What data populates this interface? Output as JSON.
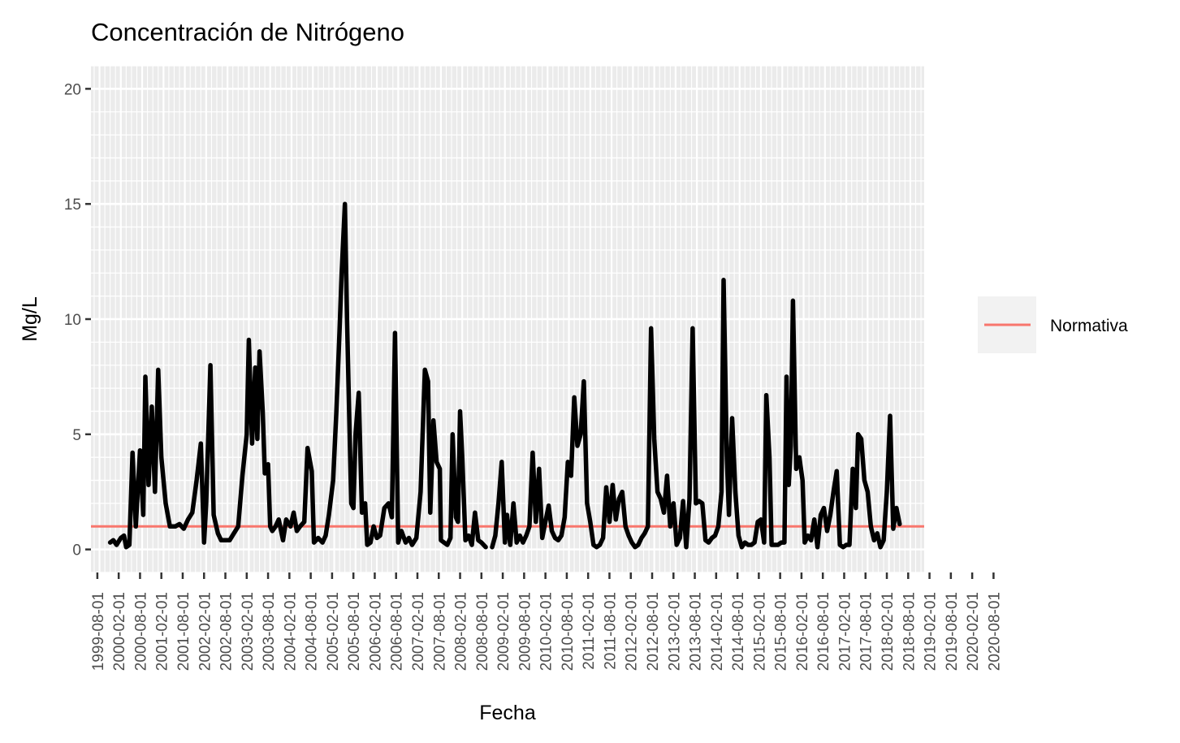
{
  "chart_data": {
    "type": "line",
    "title": "Concentración de Nitrógeno",
    "xlabel": "Fecha",
    "ylabel": "Mg/L",
    "ylim": [
      -1,
      21
    ],
    "yticks": [
      0,
      5,
      10,
      15,
      20
    ],
    "xticks": [
      "1999-08-01",
      "2000-02-01",
      "2000-08-01",
      "2001-02-01",
      "2001-08-01",
      "2002-02-01",
      "2002-08-01",
      "2003-02-01",
      "2003-08-01",
      "2004-02-01",
      "2004-08-01",
      "2005-02-01",
      "2005-08-01",
      "2006-02-01",
      "2006-08-01",
      "2007-02-01",
      "2007-08-01",
      "2008-02-01",
      "2008-08-01",
      "2009-02-01",
      "2009-08-01",
      "2010-02-01",
      "2010-08-01",
      "2011-02-01",
      "2011-08-01",
      "2012-02-01",
      "2012-08-01",
      "2013-02-01",
      "2013-08-01",
      "2014-02-01",
      "2014-08-01",
      "2015-02-01",
      "2015-08-01",
      "2016-02-01",
      "2016-08-01",
      "2017-02-01",
      "2017-08-01",
      "2018-02-01",
      "2018-08-01",
      "2019-02-01",
      "2019-08-01",
      "2020-02-01",
      "2020-08-01"
    ],
    "grid": true,
    "legend_position": "right",
    "colors": {
      "series": "#000000",
      "normativa": "#F8766D",
      "panel": "#EBEBEB",
      "grid": "#FFFFFF",
      "legend_key_bg": "#F2F2F2"
    },
    "series": [
      {
        "values": [
          [
            1,
            0.3
          ],
          [
            1.3,
            0.4
          ],
          [
            1.6,
            0.2
          ],
          [
            2,
            0.5
          ],
          [
            2.3,
            0.6
          ],
          [
            2.5,
            0.1
          ],
          [
            2.8,
            0.2
          ],
          [
            3.1,
            4.2
          ],
          [
            3.4,
            1.0
          ],
          [
            3.8,
            4.3
          ],
          [
            4.1,
            1.5
          ],
          [
            4.3,
            7.5
          ],
          [
            4.6,
            2.8
          ],
          [
            4.9,
            6.2
          ],
          [
            5.2,
            2.5
          ],
          [
            5.5,
            7.8
          ],
          [
            5.8,
            4.0
          ],
          [
            6.2,
            2.0
          ],
          [
            6.6,
            1.0
          ],
          [
            7.1,
            1.0
          ],
          [
            7.5,
            1.1
          ],
          [
            7.9,
            0.9
          ],
          [
            8.3,
            1.3
          ],
          [
            8.7,
            1.6
          ],
          [
            9.1,
            3.0
          ],
          [
            9.5,
            4.6
          ],
          [
            9.8,
            0.3
          ],
          [
            10.0,
            2.0
          ],
          [
            10.4,
            8.0
          ],
          [
            10.7,
            1.5
          ],
          [
            11.1,
            0.7
          ],
          [
            11.4,
            0.4
          ],
          [
            11.8,
            0.4
          ],
          [
            12.2,
            0.4
          ],
          [
            12.6,
            0.7
          ],
          [
            13.0,
            1.0
          ],
          [
            13.4,
            3.2
          ],
          [
            13.8,
            5.0
          ],
          [
            14.0,
            9.1
          ],
          [
            14.3,
            4.6
          ],
          [
            14.6,
            7.9
          ],
          [
            14.8,
            4.8
          ],
          [
            15.0,
            8.6
          ],
          [
            15.3,
            6.0
          ],
          [
            15.5,
            3.3
          ],
          [
            15.8,
            3.7
          ],
          [
            16.0,
            1.0
          ],
          [
            16.2,
            0.8
          ],
          [
            16.5,
            1.0
          ],
          [
            16.8,
            1.3
          ],
          [
            17.2,
            0.4
          ],
          [
            17.5,
            1.3
          ],
          [
            17.9,
            1.0
          ],
          [
            18.2,
            1.6
          ],
          [
            18.5,
            0.8
          ],
          [
            18.8,
            1.0
          ],
          [
            19.2,
            1.2
          ],
          [
            19.5,
            4.4
          ],
          [
            19.9,
            3.4
          ],
          [
            20.1,
            0.3
          ],
          [
            20.5,
            0.5
          ],
          [
            20.9,
            0.3
          ],
          [
            21.2,
            0.6
          ],
          [
            21.5,
            1.5
          ],
          [
            21.9,
            3.0
          ],
          [
            22.2,
            6.0
          ],
          [
            22.5,
            9.5
          ],
          [
            22.7,
            12.0
          ],
          [
            23.0,
            15.0
          ],
          [
            23.2,
            10.0
          ],
          [
            23.4,
            6.0
          ],
          [
            23.6,
            2.0
          ],
          [
            23.8,
            1.8
          ],
          [
            24.0,
            5.0
          ],
          [
            24.3,
            6.8
          ],
          [
            24.6,
            1.6
          ],
          [
            24.9,
            2.0
          ],
          [
            25.1,
            0.2
          ],
          [
            25.4,
            0.3
          ],
          [
            25.7,
            1.0
          ],
          [
            26.0,
            0.5
          ],
          [
            26.3,
            0.6
          ],
          [
            26.7,
            1.8
          ],
          [
            27.1,
            2.0
          ],
          [
            27.4,
            1.4
          ],
          [
            27.7,
            9.4
          ],
          [
            28.0,
            0.3
          ],
          [
            28.3,
            0.8
          ],
          [
            28.7,
            0.3
          ],
          [
            29.0,
            0.5
          ],
          [
            29.3,
            0.2
          ],
          [
            29.7,
            0.5
          ],
          [
            30.1,
            2.5
          ],
          [
            30.5,
            7.8
          ],
          [
            30.8,
            7.3
          ],
          [
            31.0,
            1.6
          ],
          [
            31.3,
            5.6
          ],
          [
            31.6,
            3.8
          ],
          [
            31.9,
            3.5
          ],
          [
            32.0,
            0.4
          ],
          [
            32.3,
            0.3
          ],
          [
            32.6,
            0.2
          ],
          [
            32.9,
            0.5
          ],
          [
            33.1,
            5.0
          ],
          [
            33.4,
            1.4
          ],
          [
            33.6,
            1.2
          ],
          [
            33.8,
            6.0
          ],
          [
            34.0,
            4.0
          ],
          [
            34.3,
            0.4
          ],
          [
            34.6,
            0.6
          ],
          [
            34.9,
            0.2
          ],
          [
            35.2,
            1.6
          ],
          [
            35.5,
            0.4
          ],
          [
            35.8,
            0.3
          ],
          [
            36.2,
            0.1
          ],
          [
            36.5,
            null
          ],
          [
            36.8,
            0.1
          ],
          [
            37.1,
            0.6
          ],
          [
            37.4,
            2.0
          ],
          [
            37.7,
            3.8
          ],
          [
            38.0,
            0.3
          ],
          [
            38.2,
            1.5
          ],
          [
            38.5,
            0.2
          ],
          [
            38.8,
            2.0
          ],
          [
            39.1,
            0.3
          ],
          [
            39.4,
            0.6
          ],
          [
            39.7,
            0.3
          ],
          [
            40.0,
            0.6
          ],
          [
            40.3,
            1.0
          ],
          [
            40.6,
            4.2
          ],
          [
            40.9,
            1.2
          ],
          [
            41.2,
            3.5
          ],
          [
            41.5,
            0.5
          ],
          [
            41.8,
            1.2
          ],
          [
            42.1,
            1.9
          ],
          [
            42.4,
            0.8
          ],
          [
            42.7,
            0.5
          ],
          [
            43.0,
            0.4
          ],
          [
            43.3,
            0.6
          ],
          [
            43.6,
            1.4
          ],
          [
            43.9,
            3.8
          ],
          [
            44.2,
            3.2
          ],
          [
            44.5,
            6.6
          ],
          [
            44.8,
            4.5
          ],
          [
            45.1,
            5.0
          ],
          [
            45.4,
            7.3
          ],
          [
            45.7,
            2.0
          ],
          [
            46.0,
            1.2
          ],
          [
            46.3,
            0.2
          ],
          [
            46.6,
            0.1
          ],
          [
            46.9,
            0.2
          ],
          [
            47.2,
            0.5
          ],
          [
            47.5,
            2.7
          ],
          [
            47.8,
            1.2
          ],
          [
            48.1,
            2.8
          ],
          [
            48.4,
            1.3
          ],
          [
            48.7,
            2.2
          ],
          [
            49.0,
            2.5
          ],
          [
            49.3,
            1.0
          ],
          [
            49.6,
            0.6
          ],
          [
            49.9,
            0.3
          ],
          [
            50.2,
            0.1
          ],
          [
            50.5,
            0.2
          ],
          [
            50.8,
            0.5
          ],
          [
            51.1,
            0.7
          ],
          [
            51.4,
            1.0
          ],
          [
            51.7,
            9.6
          ],
          [
            52.0,
            4.8
          ],
          [
            52.3,
            2.5
          ],
          [
            52.6,
            2.2
          ],
          [
            52.9,
            1.6
          ],
          [
            53.2,
            3.2
          ],
          [
            53.5,
            1.0
          ],
          [
            53.8,
            2.0
          ],
          [
            54.1,
            0.2
          ],
          [
            54.4,
            0.5
          ],
          [
            54.7,
            2.1
          ],
          [
            55.0,
            0.1
          ],
          [
            55.3,
            2.2
          ],
          [
            55.6,
            9.6
          ],
          [
            55.9,
            2.0
          ],
          [
            56.2,
            2.1
          ],
          [
            56.5,
            2.0
          ],
          [
            56.8,
            0.4
          ],
          [
            57.1,
            0.3
          ],
          [
            57.4,
            0.5
          ],
          [
            57.7,
            0.6
          ],
          [
            58.0,
            1.0
          ],
          [
            58.3,
            2.5
          ],
          [
            58.5,
            11.7
          ],
          [
            58.8,
            4.0
          ],
          [
            59.0,
            1.5
          ],
          [
            59.3,
            5.7
          ],
          [
            59.6,
            2.5
          ],
          [
            59.9,
            0.6
          ],
          [
            60.2,
            0.1
          ],
          [
            60.5,
            0.3
          ],
          [
            60.8,
            0.2
          ],
          [
            61.1,
            0.2
          ],
          [
            61.4,
            0.3
          ],
          [
            61.7,
            1.2
          ],
          [
            62.0,
            1.3
          ],
          [
            62.3,
            0.3
          ],
          [
            62.5,
            6.7
          ],
          [
            62.8,
            4.0
          ],
          [
            63.0,
            0.2
          ],
          [
            63.3,
            0.2
          ],
          [
            63.6,
            0.2
          ],
          [
            63.9,
            0.3
          ],
          [
            64.2,
            0.3
          ],
          [
            64.4,
            7.5
          ],
          [
            64.6,
            2.8
          ],
          [
            64.8,
            4.5
          ],
          [
            65.0,
            10.8
          ],
          [
            65.3,
            3.5
          ],
          [
            65.6,
            4.0
          ],
          [
            65.9,
            3.0
          ],
          [
            66.1,
            0.3
          ],
          [
            66.4,
            0.6
          ],
          [
            66.7,
            0.4
          ],
          [
            67.0,
            1.3
          ],
          [
            67.3,
            0.1
          ],
          [
            67.6,
            1.5
          ],
          [
            67.9,
            1.8
          ],
          [
            68.2,
            0.8
          ],
          [
            68.5,
            1.5
          ],
          [
            68.8,
            2.5
          ],
          [
            69.1,
            3.4
          ],
          [
            69.4,
            0.2
          ],
          [
            69.7,
            0.1
          ],
          [
            70.0,
            0.2
          ],
          [
            70.3,
            0.2
          ],
          [
            70.6,
            3.5
          ],
          [
            70.9,
            1.8
          ],
          [
            71.1,
            5.0
          ],
          [
            71.4,
            4.8
          ],
          [
            71.7,
            3.0
          ],
          [
            72.0,
            2.5
          ],
          [
            72.3,
            1.0
          ],
          [
            72.6,
            0.4
          ],
          [
            72.9,
            0.7
          ],
          [
            73.2,
            0.1
          ],
          [
            73.5,
            0.4
          ],
          [
            73.8,
            2.5
          ],
          [
            74.1,
            5.8
          ],
          [
            74.4,
            0.9
          ],
          [
            74.7,
            1.8
          ],
          [
            75.0,
            1.1
          ]
        ]
      }
    ],
    "x_domain": [
      -0.8,
      77.3
    ],
    "hline": {
      "name": "Normativa",
      "y": 1.0
    },
    "legend": {
      "label": "Normativa"
    }
  }
}
